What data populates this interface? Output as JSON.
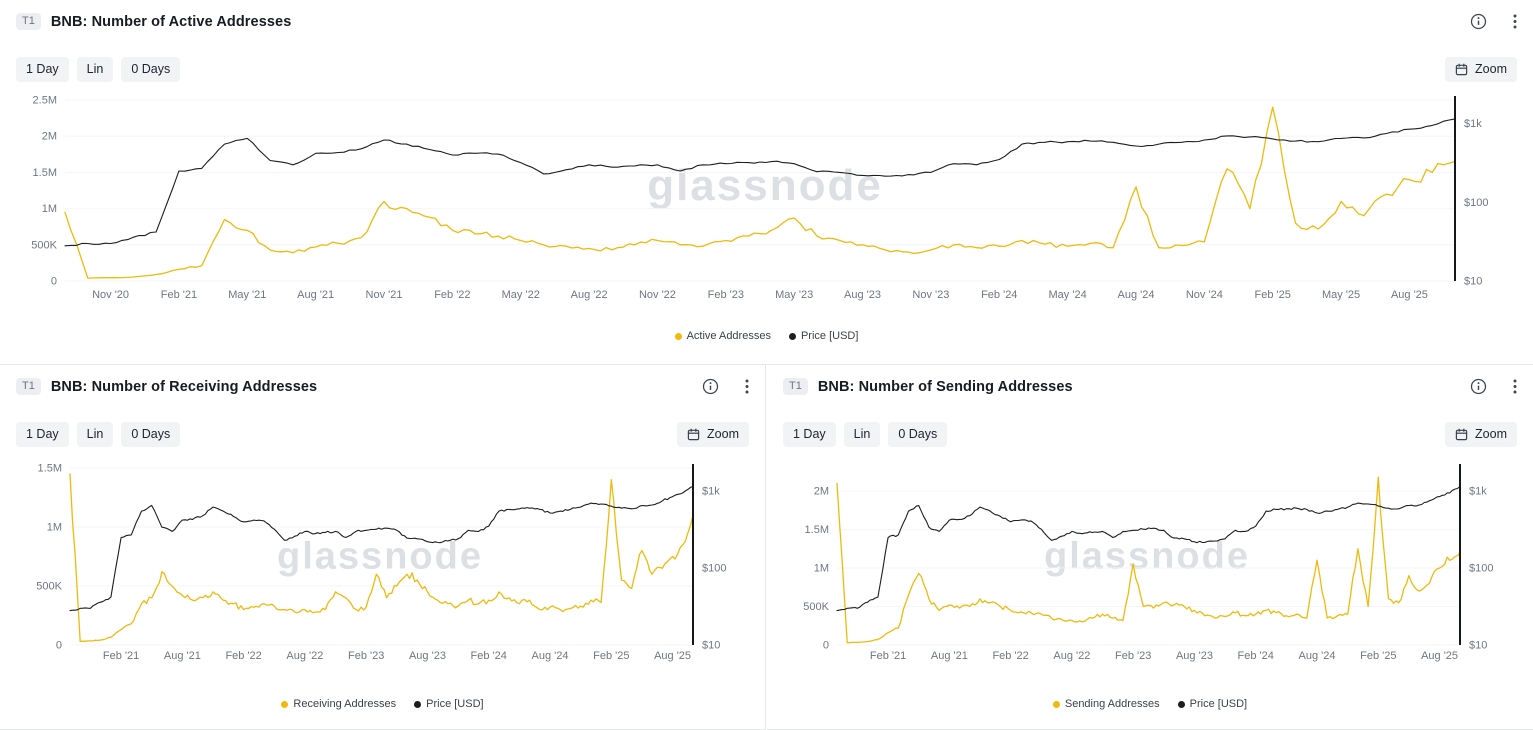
{
  "ui": {
    "badge": "T1",
    "toolbar": {
      "interval": "1 Day",
      "scale": "Lin",
      "days": "0 Days",
      "zoom": "Zoom"
    },
    "watermark": "glassnode",
    "colors": {
      "series_yellow": "#f0b90b",
      "series_black": "#1c1e21",
      "axis_text": "#6e7683",
      "panel_border": "#e5e7eb",
      "button_bg": "#f1f3f5"
    }
  },
  "chart_data": [
    {
      "type": "line",
      "title": "BNB: Number of Active Addresses",
      "legend_position": "bottom",
      "x": [
        "2020-09",
        "2020-10",
        "2020-11",
        "2020-12",
        "2021-01",
        "2021-02",
        "2021-03",
        "2021-04",
        "2021-05",
        "2021-06",
        "2021-07",
        "2021-08",
        "2021-09",
        "2021-10",
        "2021-11",
        "2021-12",
        "2022-01",
        "2022-02",
        "2022-03",
        "2022-04",
        "2022-05",
        "2022-06",
        "2022-07",
        "2022-08",
        "2022-09",
        "2022-10",
        "2022-11",
        "2022-12",
        "2023-01",
        "2023-02",
        "2023-03",
        "2023-04",
        "2023-05",
        "2023-06",
        "2023-07",
        "2023-08",
        "2023-09",
        "2023-10",
        "2023-11",
        "2023-12",
        "2024-01",
        "2024-02",
        "2024-03",
        "2024-04",
        "2024-05",
        "2024-06",
        "2024-07",
        "2024-08",
        "2024-09",
        "2024-10",
        "2024-11",
        "2024-12",
        "2025-01",
        "2025-02",
        "2025-03",
        "2025-04",
        "2025-05",
        "2025-06",
        "2025-07",
        "2025-08",
        "2025-09",
        "2025-10"
      ],
      "x_ticks": [
        "Nov '20",
        "Feb '21",
        "May '21",
        "Aug '21",
        "Nov '21",
        "Feb '22",
        "May '22",
        "Aug '22",
        "Nov '22",
        "Feb '23",
        "May '23",
        "Aug '23",
        "Nov '23",
        "Feb '24",
        "May '24",
        "Aug '24",
        "Nov '24",
        "Feb '25",
        "May '25",
        "Aug '25"
      ],
      "left_axis": {
        "scale": "linear",
        "max": 2500000,
        "ticks": [
          {
            "v": 0,
            "label": "0"
          },
          {
            "v": 500000,
            "label": "500K"
          },
          {
            "v": 1000000,
            "label": "1M"
          },
          {
            "v": 1500000,
            "label": "1.5M"
          },
          {
            "v": 2000000,
            "label": "2M"
          },
          {
            "v": 2500000,
            "label": "2.5M"
          }
        ]
      },
      "right_axis": {
        "scale": "log",
        "min": 10,
        "max": 2000,
        "ticks": [
          {
            "v": 10,
            "label": "$10"
          },
          {
            "v": 100,
            "label": "$100"
          },
          {
            "v": 1000,
            "label": "$1k"
          }
        ]
      },
      "series": [
        {
          "name": "Active Addresses",
          "axis": "left",
          "color": "#f0b90b",
          "values": [
            950000,
            40000,
            45000,
            55000,
            90000,
            160000,
            210000,
            850000,
            700000,
            430000,
            390000,
            470000,
            520000,
            600000,
            1100000,
            1000000,
            880000,
            700000,
            650000,
            620000,
            560000,
            500000,
            480000,
            450000,
            430000,
            500000,
            560000,
            500000,
            480000,
            560000,
            620000,
            700000,
            870000,
            620000,
            560000,
            500000,
            430000,
            400000,
            430000,
            500000,
            460000,
            480000,
            560000,
            510000,
            480000,
            520000,
            460000,
            1300000,
            460000,
            490000,
            540000,
            1550000,
            1000000,
            2400000,
            800000,
            720000,
            1100000,
            900000,
            1200000,
            1400000,
            1500000,
            1650000
          ]
        },
        {
          "name": "Price [USD]",
          "axis": "right",
          "color": "#1c1e21",
          "values": [
            28,
            30,
            30,
            36,
            42,
            250,
            270,
            550,
            650,
            340,
            300,
            420,
            430,
            480,
            620,
            550,
            470,
            400,
            420,
            410,
            320,
            230,
            260,
            300,
            280,
            290,
            300,
            250,
            300,
            310,
            320,
            330,
            310,
            245,
            240,
            220,
            215,
            225,
            240,
            310,
            300,
            350,
            550,
            580,
            590,
            600,
            580,
            520,
            550,
            580,
            620,
            700,
            680,
            640,
            600,
            590,
            650,
            660,
            750,
            850,
            950,
            1150
          ]
        }
      ]
    },
    {
      "type": "line",
      "title": "BNB: Number of Receiving Addresses",
      "legend_position": "bottom",
      "x": [
        "2020-09",
        "2020-10",
        "2020-11",
        "2020-12",
        "2021-01",
        "2021-02",
        "2021-03",
        "2021-04",
        "2021-05",
        "2021-06",
        "2021-07",
        "2021-08",
        "2021-09",
        "2021-10",
        "2021-11",
        "2021-12",
        "2022-01",
        "2022-02",
        "2022-03",
        "2022-04",
        "2022-05",
        "2022-06",
        "2022-07",
        "2022-08",
        "2022-09",
        "2022-10",
        "2022-11",
        "2022-12",
        "2023-01",
        "2023-02",
        "2023-03",
        "2023-04",
        "2023-05",
        "2023-06",
        "2023-07",
        "2023-08",
        "2023-09",
        "2023-10",
        "2023-11",
        "2023-12",
        "2024-01",
        "2024-02",
        "2024-03",
        "2024-04",
        "2024-05",
        "2024-06",
        "2024-07",
        "2024-08",
        "2024-09",
        "2024-10",
        "2024-11",
        "2024-12",
        "2025-01",
        "2025-02",
        "2025-03",
        "2025-04",
        "2025-05",
        "2025-06",
        "2025-07",
        "2025-08",
        "2025-09",
        "2025-10"
      ],
      "x_ticks": [
        "Feb '21",
        "Aug '21",
        "Feb '22",
        "Aug '22",
        "Feb '23",
        "Aug '23",
        "Feb '24",
        "Aug '24",
        "Feb '25",
        "Aug '25"
      ],
      "left_axis": {
        "scale": "linear",
        "max": 1500000,
        "ticks": [
          {
            "v": 0,
            "label": "0"
          },
          {
            "v": 500000,
            "label": "500K"
          },
          {
            "v": 1000000,
            "label": "1M"
          },
          {
            "v": 1500000,
            "label": "1.5M"
          }
        ]
      },
      "right_axis": {
        "scale": "log",
        "min": 10,
        "max": 2000,
        "ticks": [
          {
            "v": 10,
            "label": "$10"
          },
          {
            "v": 100,
            "label": "$100"
          },
          {
            "v": 1000,
            "label": "$1k"
          }
        ]
      },
      "series": [
        {
          "name": "Receiving Addresses",
          "axis": "left",
          "color": "#f0b90b",
          "values": [
            1450000,
            30000,
            35000,
            42000,
            65000,
            130000,
            180000,
            350000,
            400000,
            620000,
            500000,
            420000,
            380000,
            400000,
            450000,
            380000,
            350000,
            300000,
            320000,
            350000,
            330000,
            300000,
            280000,
            300000,
            280000,
            300000,
            450000,
            400000,
            300000,
            320000,
            600000,
            400000,
            500000,
            600000,
            550000,
            450000,
            380000,
            350000,
            330000,
            380000,
            350000,
            380000,
            450000,
            400000,
            350000,
            380000,
            300000,
            320000,
            300000,
            310000,
            330000,
            380000,
            360000,
            1400000,
            550000,
            480000,
            800000,
            600000,
            650000,
            750000,
            850000,
            1100000
          ]
        },
        {
          "name": "Price [USD]",
          "axis": "right",
          "color": "#1c1e21",
          "values": [
            28,
            30,
            30,
            36,
            42,
            250,
            270,
            550,
            650,
            340,
            300,
            420,
            430,
            480,
            620,
            550,
            470,
            400,
            420,
            410,
            320,
            230,
            260,
            300,
            280,
            290,
            300,
            250,
            300,
            310,
            320,
            330,
            310,
            245,
            240,
            220,
            215,
            225,
            240,
            310,
            300,
            350,
            550,
            580,
            590,
            600,
            580,
            520,
            550,
            580,
            620,
            700,
            680,
            640,
            600,
            590,
            650,
            660,
            750,
            850,
            950,
            1150
          ]
        }
      ]
    },
    {
      "type": "line",
      "title": "BNB: Number of Sending Addresses",
      "legend_position": "bottom",
      "x": [
        "2020-09",
        "2020-10",
        "2020-11",
        "2020-12",
        "2021-01",
        "2021-02",
        "2021-03",
        "2021-04",
        "2021-05",
        "2021-06",
        "2021-07",
        "2021-08",
        "2021-09",
        "2021-10",
        "2021-11",
        "2021-12",
        "2022-01",
        "2022-02",
        "2022-03",
        "2022-04",
        "2022-05",
        "2022-06",
        "2022-07",
        "2022-08",
        "2022-09",
        "2022-10",
        "2022-11",
        "2022-12",
        "2023-01",
        "2023-02",
        "2023-03",
        "2023-04",
        "2023-05",
        "2023-06",
        "2023-07",
        "2023-08",
        "2023-09",
        "2023-10",
        "2023-11",
        "2023-12",
        "2024-01",
        "2024-02",
        "2024-03",
        "2024-04",
        "2024-05",
        "2024-06",
        "2024-07",
        "2024-08",
        "2024-09",
        "2024-10",
        "2024-11",
        "2024-12",
        "2025-01",
        "2025-02",
        "2025-03",
        "2025-04",
        "2025-05",
        "2025-06",
        "2025-07",
        "2025-08",
        "2025-09",
        "2025-10"
      ],
      "x_ticks": [
        "Feb '21",
        "Aug '21",
        "Feb '22",
        "Aug '22",
        "Feb '23",
        "Aug '23",
        "Feb '24",
        "Aug '24",
        "Feb '25",
        "Aug '25"
      ],
      "left_axis": {
        "scale": "linear",
        "max": 2300000,
        "ticks": [
          {
            "v": 0,
            "label": "0"
          },
          {
            "v": 500000,
            "label": "500K"
          },
          {
            "v": 1000000,
            "label": "1M"
          },
          {
            "v": 1500000,
            "label": "1.5M"
          },
          {
            "v": 2000000,
            "label": "2M"
          }
        ]
      },
      "right_axis": {
        "scale": "log",
        "min": 10,
        "max": 2000,
        "ticks": [
          {
            "v": 10,
            "label": "$10"
          },
          {
            "v": 100,
            "label": "$100"
          },
          {
            "v": 1000,
            "label": "$1k"
          }
        ]
      },
      "series": [
        {
          "name": "Sending Addresses",
          "axis": "left",
          "color": "#f0b90b",
          "values": [
            2100000,
            30000,
            35000,
            45000,
            70000,
            160000,
            220000,
            650000,
            930000,
            600000,
            450000,
            520000,
            480000,
            500000,
            600000,
            550000,
            500000,
            450000,
            430000,
            420000,
            400000,
            350000,
            330000,
            320000,
            300000,
            350000,
            400000,
            350000,
            320000,
            1050000,
            500000,
            480000,
            550000,
            520000,
            500000,
            450000,
            380000,
            350000,
            370000,
            420000,
            380000,
            400000,
            450000,
            420000,
            380000,
            400000,
            350000,
            1100000,
            350000,
            380000,
            400000,
            1250000,
            500000,
            2180000,
            600000,
            550000,
            900000,
            700000,
            800000,
            1000000,
            1100000,
            1200000
          ]
        },
        {
          "name": "Price [USD]",
          "axis": "right",
          "color": "#1c1e21",
          "values": [
            28,
            30,
            30,
            36,
            42,
            250,
            270,
            550,
            650,
            340,
            300,
            420,
            430,
            480,
            620,
            550,
            470,
            400,
            420,
            410,
            320,
            230,
            260,
            300,
            280,
            290,
            300,
            250,
            300,
            310,
            320,
            330,
            310,
            245,
            240,
            220,
            215,
            225,
            240,
            310,
            300,
            350,
            550,
            580,
            590,
            600,
            580,
            520,
            550,
            580,
            620,
            700,
            680,
            640,
            600,
            590,
            650,
            660,
            750,
            850,
            950,
            1150
          ]
        }
      ]
    }
  ]
}
